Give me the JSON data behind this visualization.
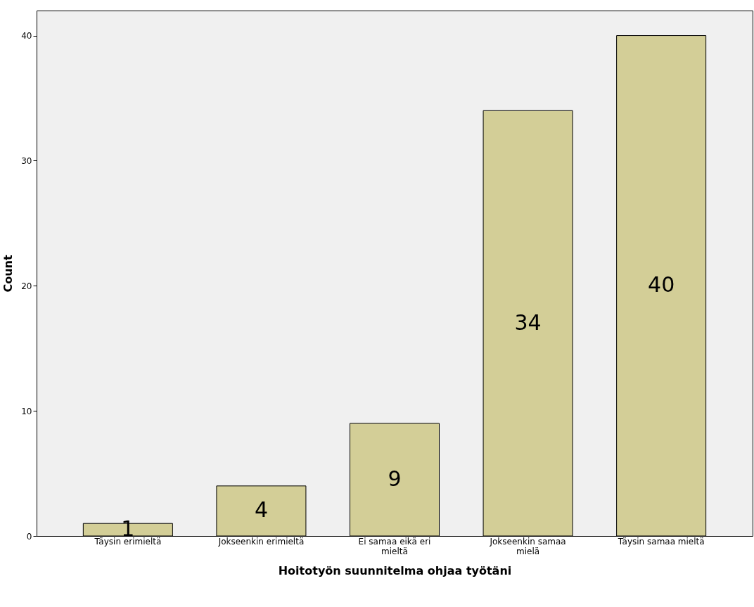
{
  "chart_data": {
    "type": "bar",
    "xlabel": "Hoitotyön suunnitelma ohjaa työtäni",
    "ylabel": "Count",
    "categories": [
      "Täysin erimieltä",
      "Jokseenkin erimieltä",
      "Ei samaa eikä eri mieltä",
      "Jokseenkin samaa mielä",
      "Täysin samaa mieltä"
    ],
    "values": [
      1,
      4,
      9,
      34,
      40
    ],
    "color": "#d3ce97",
    "ylim": [
      0,
      42
    ],
    "yticks": [
      0,
      10,
      20,
      30,
      40
    ],
    "grid": false,
    "data_labels": true
  }
}
